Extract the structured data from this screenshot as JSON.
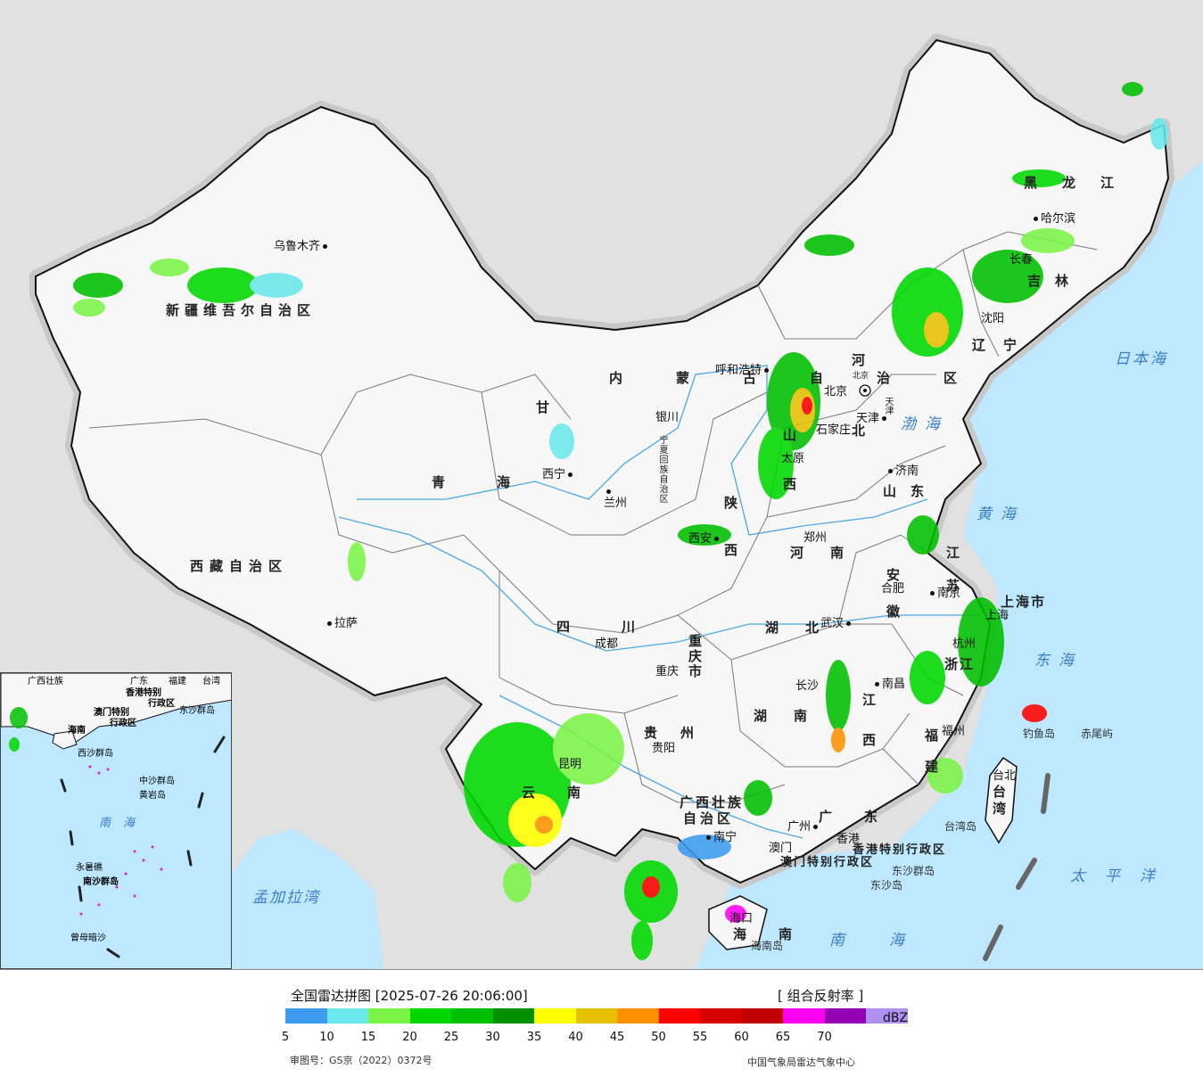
{
  "legend": {
    "title": "全国雷达拼图 [2025-07-26 20:06:00]",
    "product": "[ 组合反射率 ]",
    "unit": "dBZ",
    "approval": "审图号：GS京（2022）0372号",
    "credit": "中国气象局雷达气象中心",
    "colors": [
      "#3d9bf0",
      "#6ae8ea",
      "#7bf447",
      "#00d800",
      "#00c000",
      "#009000",
      "#ffff00",
      "#e7c000",
      "#ff9000",
      "#ff0000",
      "#d60000",
      "#c00000",
      "#ff00f0",
      "#9600b4",
      "#ad90f0"
    ],
    "ticks": [
      "5",
      "10",
      "15",
      "20",
      "25",
      "30",
      "35",
      "40",
      "45",
      "50",
      "55",
      "60",
      "65",
      "70"
    ]
  },
  "provinces": {
    "xinjiang": "新疆维吾尔自治区",
    "tibet": "西藏自治区",
    "qinghai": "青海",
    "gansu": "甘",
    "sichuan": "四川",
    "yunnan": "云南",
    "guizhou": "贵州",
    "guangxi": "广西壮族",
    "guangxi2": "自治区",
    "guangdong": "广东",
    "hainan": "海南",
    "hunan": "湖南",
    "hubei": "湖北",
    "jiangxi": "江西",
    "fujian": "福建",
    "zhejiang": "浙江",
    "anhui": "安徽",
    "jiangsu": "江苏",
    "shandong": "山东",
    "henan": "河南",
    "hebei": "河北",
    "shanxi": "山西",
    "shaanxi": "陕西",
    "ningxia": "宁夏回族自治区",
    "neimenggu": "内蒙古自治区",
    "liaoning": "辽宁",
    "jilin": "吉林",
    "heilongjiang": "黑龙江",
    "chongqing": "重庆市",
    "shanghai": "上海市",
    "taiwan": "台湾",
    "hk_sar": "香港特别行政区",
    "mo_sar": "澳门特别行政区",
    "tianjin": "天津",
    "beijing": "北京"
  },
  "cities": {
    "urumqi": "乌鲁木齐",
    "lhasa": "拉萨",
    "xining": "西宁",
    "lanzhou": "兰州",
    "yinchuan": "银川",
    "hohhot": "呼和浩特",
    "chengdu": "成都",
    "chongqing": "重庆",
    "kunming": "昆明",
    "guiyang": "贵阳",
    "nanning": "南宁",
    "guangzhou": "广州",
    "macau": "澳门",
    "hongkong": "香港",
    "haikou": "海口",
    "changsha": "长沙",
    "wuhan": "武汉",
    "nanchang": "南昌",
    "fuzhou": "福州",
    "hangzhou": "杭州",
    "shanghai": "上海",
    "nanjing": "南京",
    "hefei": "合肥",
    "jinan": "济南",
    "zhengzhou": "郑州",
    "xian": "西安",
    "taiyuan": "太原",
    "shijiazhuang": "石家庄",
    "beijing": "北京",
    "tianjin": "天津",
    "shenyang": "沈阳",
    "changchun": "长春",
    "harbin": "哈尔滨",
    "taipei": "台北"
  },
  "seas": {
    "bohai": "渤海",
    "yellow": "黄海",
    "east": "东海",
    "south": "南海",
    "pacific": "太平洋",
    "japan": "日本海",
    "bengal": "孟加拉湾"
  },
  "islands": {
    "diaoyu": "钓鱼岛",
    "chiwei": "赤尾屿",
    "taiwan_island": "台湾岛",
    "dongsha_qd": "东沙群岛",
    "dongsha": "东沙岛",
    "hainan_island": "海南岛"
  },
  "inset": {
    "labels": [
      "广西壮族",
      "广东",
      "福建",
      "台湾",
      "香港特别",
      "行政区",
      "澳门特别",
      "行政区",
      "东沙群岛",
      "海南",
      "西沙群岛",
      "中沙群岛",
      "黄岩岛",
      "南海",
      "永暑礁",
      "南沙群岛",
      "曾母暗沙"
    ]
  }
}
